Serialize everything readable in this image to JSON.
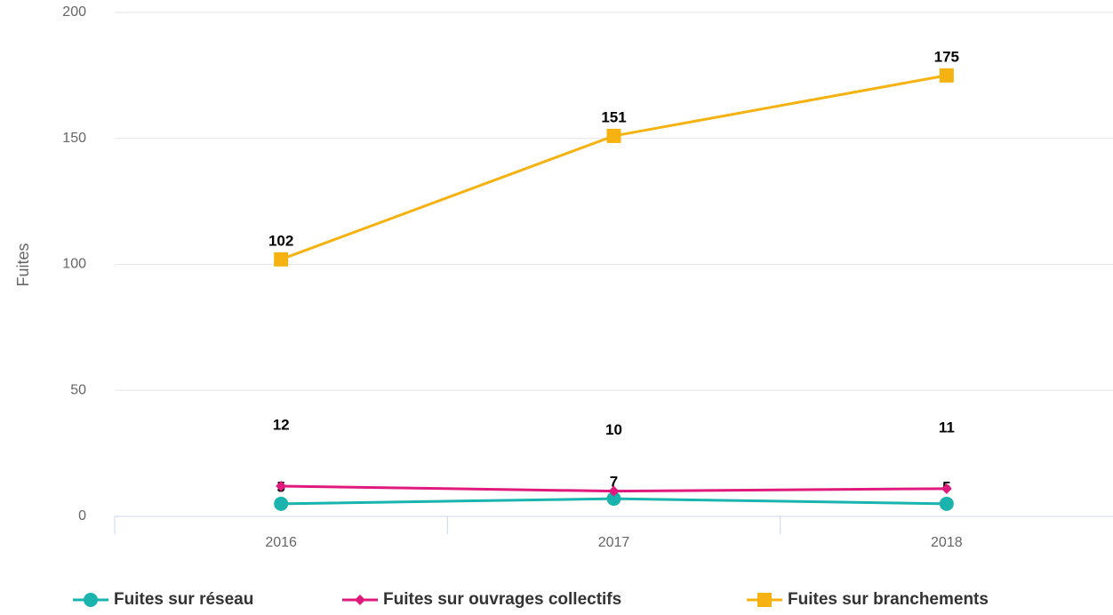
{
  "chart_data": {
    "type": "line",
    "y_axis_title": "Fuites",
    "categories": [
      "2016",
      "2017",
      "2018"
    ],
    "series": [
      {
        "name": "Fuites sur réseau",
        "color": "#1ab3ad",
        "marker": "circle",
        "values": [
          5,
          7,
          5
        ]
      },
      {
        "name": "Fuites sur ouvrages collectifs",
        "color": "#e0197d",
        "marker": "diamond",
        "values": [
          12,
          10,
          11
        ]
      },
      {
        "name": "Fuites sur branchements",
        "color": "#f5b210",
        "marker": "square",
        "values": [
          102,
          151,
          175
        ]
      }
    ],
    "ylim": [
      0,
      200
    ],
    "yticks": [
      0,
      50,
      100,
      150,
      200
    ],
    "grid": true,
    "legend": "bottom"
  }
}
